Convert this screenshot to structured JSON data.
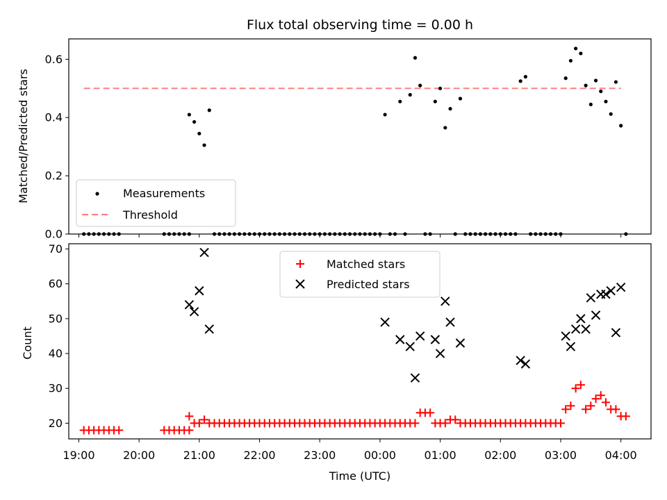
{
  "chart_data": [
    {
      "type": "scatter",
      "title": "Flux total observing time = 0.00 h",
      "xlabel": "",
      "ylabel": "Matched/Predicted stars",
      "xlim": [
        "18:50",
        "04:30"
      ],
      "ylim": [
        0,
        0.67
      ],
      "yticks": [
        "0.0",
        "0.2",
        "0.4",
        "0.6"
      ],
      "legend": {
        "position": "lower-left",
        "entries": [
          "Measurements",
          "Threshold"
        ]
      },
      "threshold": {
        "name": "Threshold",
        "value": 0.5,
        "x_start": "19:05",
        "x_end": "04:00",
        "color": "#ff7f7f"
      },
      "series": [
        {
          "name": "Measurements",
          "color": "#000000",
          "points": [
            [
              "19:05",
              0
            ],
            [
              "19:10",
              0
            ],
            [
              "19:15",
              0
            ],
            [
              "19:20",
              0
            ],
            [
              "19:25",
              0
            ],
            [
              "19:30",
              0
            ],
            [
              "19:35",
              0
            ],
            [
              "19:40",
              0
            ],
            [
              "20:25",
              0
            ],
            [
              "20:30",
              0
            ],
            [
              "20:35",
              0
            ],
            [
              "20:40",
              0
            ],
            [
              "20:45",
              0
            ],
            [
              "20:50",
              0
            ],
            [
              "20:50",
              0.41
            ],
            [
              "20:55",
              0.385
            ],
            [
              "21:00",
              0.345
            ],
            [
              "21:05",
              0.305
            ],
            [
              "21:10",
              0.425
            ],
            [
              "21:15",
              0
            ],
            [
              "21:20",
              0
            ],
            [
              "21:25",
              0
            ],
            [
              "21:30",
              0
            ],
            [
              "21:35",
              0
            ],
            [
              "21:40",
              0
            ],
            [
              "21:45",
              0
            ],
            [
              "21:50",
              0
            ],
            [
              "21:55",
              0
            ],
            [
              "22:00",
              0
            ],
            [
              "22:05",
              0
            ],
            [
              "22:10",
              0
            ],
            [
              "22:15",
              0
            ],
            [
              "22:20",
              0
            ],
            [
              "22:25",
              0
            ],
            [
              "22:30",
              0
            ],
            [
              "22:35",
              0
            ],
            [
              "22:40",
              0
            ],
            [
              "22:45",
              0
            ],
            [
              "22:50",
              0
            ],
            [
              "22:55",
              0
            ],
            [
              "23:00",
              0
            ],
            [
              "23:05",
              0
            ],
            [
              "23:10",
              0
            ],
            [
              "23:15",
              0
            ],
            [
              "23:20",
              0
            ],
            [
              "23:25",
              0
            ],
            [
              "23:30",
              0
            ],
            [
              "23:35",
              0
            ],
            [
              "23:40",
              0
            ],
            [
              "23:45",
              0
            ],
            [
              "23:50",
              0
            ],
            [
              "23:55",
              0
            ],
            [
              "00:00",
              0
            ],
            [
              "00:05",
              0.41
            ],
            [
              "00:10",
              0
            ],
            [
              "00:15",
              0
            ],
            [
              "00:20",
              0.455
            ],
            [
              "00:25",
              0
            ],
            [
              "00:30",
              0.478
            ],
            [
              "00:35",
              0.605
            ],
            [
              "00:40",
              0.51
            ],
            [
              "00:45",
              0
            ],
            [
              "00:50",
              0
            ],
            [
              "00:55",
              0.455
            ],
            [
              "01:00",
              0.5
            ],
            [
              "01:05",
              0.365
            ],
            [
              "01:10",
              0.43
            ],
            [
              "01:15",
              0
            ],
            [
              "01:20",
              0.465
            ],
            [
              "01:25",
              0
            ],
            [
              "01:30",
              0
            ],
            [
              "01:35",
              0
            ],
            [
              "01:40",
              0
            ],
            [
              "01:45",
              0
            ],
            [
              "01:50",
              0
            ],
            [
              "01:55",
              0
            ],
            [
              "02:00",
              0
            ],
            [
              "02:05",
              0
            ],
            [
              "02:10",
              0
            ],
            [
              "02:15",
              0
            ],
            [
              "02:20",
              0.525
            ],
            [
              "02:25",
              0.54
            ],
            [
              "02:30",
              0
            ],
            [
              "02:35",
              0
            ],
            [
              "02:40",
              0
            ],
            [
              "02:45",
              0
            ],
            [
              "02:50",
              0
            ],
            [
              "02:55",
              0
            ],
            [
              "03:00",
              0
            ],
            [
              "03:05",
              0.535
            ],
            [
              "03:10",
              0.595
            ],
            [
              "03:15",
              0.637
            ],
            [
              "03:20",
              0.62
            ],
            [
              "03:25",
              0.51
            ],
            [
              "03:30",
              0.445
            ],
            [
              "03:35",
              0.527
            ],
            [
              "03:40",
              0.49
            ],
            [
              "03:45",
              0.455
            ],
            [
              "03:50",
              0.412
            ],
            [
              "03:55",
              0.522
            ],
            [
              "04:00",
              0.372
            ],
            [
              "04:05",
              0
            ]
          ]
        }
      ]
    },
    {
      "type": "scatter",
      "title": "",
      "xlabel": "Time (UTC)",
      "ylabel": "Count",
      "xlim": [
        "18:50",
        "04:30"
      ],
      "ylim": [
        15.5,
        71.5
      ],
      "yticks": [
        "20",
        "30",
        "40",
        "50",
        "60",
        "70"
      ],
      "xticks": [
        "19:00",
        "20:00",
        "21:00",
        "22:00",
        "23:00",
        "00:00",
        "01:00",
        "02:00",
        "03:00",
        "04:00"
      ],
      "legend": {
        "position": "upper-center",
        "entries": [
          "Matched stars",
          "Predicted stars"
        ]
      },
      "series": [
        {
          "name": "Matched stars",
          "marker": "plus",
          "color": "#ff0000",
          "points": [
            [
              "19:05",
              18
            ],
            [
              "19:10",
              18
            ],
            [
              "19:15",
              18
            ],
            [
              "19:20",
              18
            ],
            [
              "19:25",
              18
            ],
            [
              "19:30",
              18
            ],
            [
              "19:35",
              18
            ],
            [
              "19:40",
              18
            ],
            [
              "20:25",
              18
            ],
            [
              "20:30",
              18
            ],
            [
              "20:35",
              18
            ],
            [
              "20:40",
              18
            ],
            [
              "20:45",
              18
            ],
            [
              "20:50",
              18
            ],
            [
              "20:50",
              22
            ],
            [
              "20:55",
              20
            ],
            [
              "21:00",
              20
            ],
            [
              "21:05",
              21
            ],
            [
              "21:10",
              20
            ],
            [
              "21:15",
              20
            ],
            [
              "21:20",
              20
            ],
            [
              "21:25",
              20
            ],
            [
              "21:30",
              20
            ],
            [
              "21:35",
              20
            ],
            [
              "21:40",
              20
            ],
            [
              "21:45",
              20
            ],
            [
              "21:50",
              20
            ],
            [
              "21:55",
              20
            ],
            [
              "22:00",
              20
            ],
            [
              "22:05",
              20
            ],
            [
              "22:10",
              20
            ],
            [
              "22:15",
              20
            ],
            [
              "22:20",
              20
            ],
            [
              "22:25",
              20
            ],
            [
              "22:30",
              20
            ],
            [
              "22:35",
              20
            ],
            [
              "22:40",
              20
            ],
            [
              "22:45",
              20
            ],
            [
              "22:50",
              20
            ],
            [
              "22:55",
              20
            ],
            [
              "23:00",
              20
            ],
            [
              "23:05",
              20
            ],
            [
              "23:10",
              20
            ],
            [
              "23:15",
              20
            ],
            [
              "23:20",
              20
            ],
            [
              "23:25",
              20
            ],
            [
              "23:30",
              20
            ],
            [
              "23:35",
              20
            ],
            [
              "23:40",
              20
            ],
            [
              "23:45",
              20
            ],
            [
              "23:50",
              20
            ],
            [
              "23:55",
              20
            ],
            [
              "00:00",
              20
            ],
            [
              "00:05",
              20
            ],
            [
              "00:10",
              20
            ],
            [
              "00:15",
              20
            ],
            [
              "00:20",
              20
            ],
            [
              "00:25",
              20
            ],
            [
              "00:30",
              20
            ],
            [
              "00:35",
              20
            ],
            [
              "00:40",
              23
            ],
            [
              "00:45",
              23
            ],
            [
              "00:50",
              23
            ],
            [
              "00:55",
              20
            ],
            [
              "01:00",
              20
            ],
            [
              "01:05",
              20
            ],
            [
              "01:10",
              21
            ],
            [
              "01:15",
              21
            ],
            [
              "01:20",
              20
            ],
            [
              "01:25",
              20
            ],
            [
              "01:30",
              20
            ],
            [
              "01:35",
              20
            ],
            [
              "01:40",
              20
            ],
            [
              "01:45",
              20
            ],
            [
              "01:50",
              20
            ],
            [
              "01:55",
              20
            ],
            [
              "02:00",
              20
            ],
            [
              "02:05",
              20
            ],
            [
              "02:10",
              20
            ],
            [
              "02:15",
              20
            ],
            [
              "02:20",
              20
            ],
            [
              "02:25",
              20
            ],
            [
              "02:30",
              20
            ],
            [
              "02:35",
              20
            ],
            [
              "02:40",
              20
            ],
            [
              "02:45",
              20
            ],
            [
              "02:50",
              20
            ],
            [
              "02:55",
              20
            ],
            [
              "03:00",
              20
            ],
            [
              "03:05",
              24
            ],
            [
              "03:10",
              25
            ],
            [
              "03:15",
              30
            ],
            [
              "03:20",
              31
            ],
            [
              "03:25",
              24
            ],
            [
              "03:30",
              25
            ],
            [
              "03:35",
              27
            ],
            [
              "03:40",
              28
            ],
            [
              "03:45",
              26
            ],
            [
              "03:50",
              24
            ],
            [
              "03:55",
              24
            ],
            [
              "04:00",
              22
            ],
            [
              "04:05",
              22
            ]
          ]
        },
        {
          "name": "Predicted stars",
          "marker": "x",
          "color": "#000000",
          "points": [
            [
              "20:50",
              54
            ],
            [
              "20:55",
              52
            ],
            [
              "21:00",
              58
            ],
            [
              "21:05",
              69
            ],
            [
              "21:10",
              47
            ],
            [
              "00:05",
              49
            ],
            [
              "00:20",
              44
            ],
            [
              "00:30",
              42
            ],
            [
              "00:35",
              33
            ],
            [
              "00:40",
              45
            ],
            [
              "00:55",
              44
            ],
            [
              "01:00",
              40
            ],
            [
              "01:05",
              55
            ],
            [
              "01:10",
              49
            ],
            [
              "01:20",
              43
            ],
            [
              "02:20",
              38
            ],
            [
              "02:25",
              37
            ],
            [
              "03:05",
              45
            ],
            [
              "03:10",
              42
            ],
            [
              "03:15",
              47
            ],
            [
              "03:20",
              50
            ],
            [
              "03:25",
              47
            ],
            [
              "03:30",
              56
            ],
            [
              "03:35",
              51
            ],
            [
              "03:40",
              57
            ],
            [
              "03:45",
              57
            ],
            [
              "03:50",
              58
            ],
            [
              "03:55",
              46
            ],
            [
              "04:00",
              59
            ]
          ]
        }
      ]
    }
  ]
}
